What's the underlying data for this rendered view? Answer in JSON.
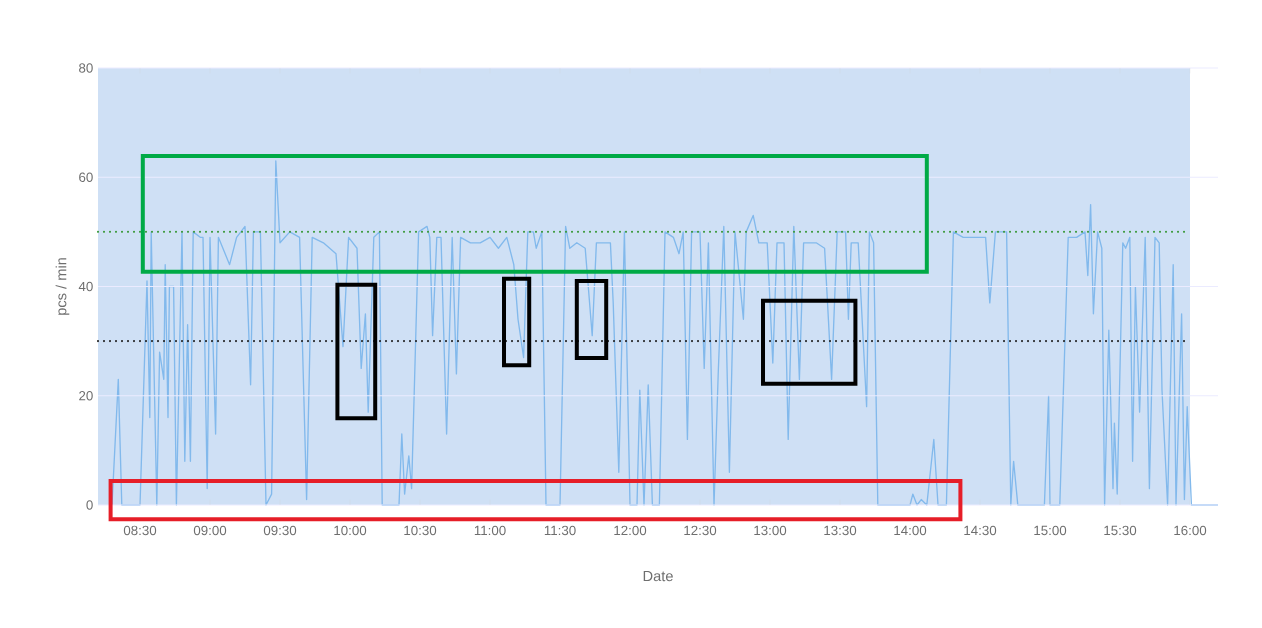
{
  "chart_data": {
    "type": "line",
    "xlabel": "Date",
    "ylabel": "pcs / min",
    "xlim": [
      8.2,
      16.2
    ],
    "ylim": [
      0,
      80
    ],
    "yticks": [
      0,
      20,
      40,
      60,
      80
    ],
    "xticks": [
      {
        "value": 8.5,
        "label": "08:30"
      },
      {
        "value": 9,
        "label": "09:00"
      },
      {
        "value": 9.5,
        "label": "09:30"
      },
      {
        "value": 10,
        "label": "10:00"
      },
      {
        "value": 10.5,
        "label": "10:30"
      },
      {
        "value": 11,
        "label": "11:00"
      },
      {
        "value": 11.5,
        "label": "11:30"
      },
      {
        "value": 12,
        "label": "12:00"
      },
      {
        "value": 12.5,
        "label": "12:30"
      },
      {
        "value": 13,
        "label": "13:00"
      },
      {
        "value": 13.5,
        "label": "13:30"
      },
      {
        "value": 14,
        "label": "14:00"
      },
      {
        "value": 14.5,
        "label": "14:30"
      },
      {
        "value": 15,
        "label": "15:00"
      },
      {
        "value": 15.5,
        "label": "15:30"
      },
      {
        "value": 16,
        "label": "16:00"
      }
    ],
    "grid": "y",
    "bands": [
      {
        "axis": "x",
        "from": 8.2,
        "to": 16.0,
        "color": "#cfe0f5"
      }
    ],
    "ref_lines": [
      {
        "axis": "y",
        "value": 50,
        "color": "#3c9a3c",
        "line_style": "dotted"
      },
      {
        "axis": "y",
        "value": 30,
        "color": "#222222",
        "line_style": "dotted"
      }
    ],
    "series": [
      {
        "color": "#82b9ec",
        "x": [
          8.3,
          8.345,
          8.37,
          8.5,
          8.55,
          8.57,
          8.58,
          8.62,
          8.64,
          8.67,
          8.68,
          8.7,
          8.71,
          8.74,
          8.76,
          8.8,
          8.82,
          8.84,
          8.86,
          8.88,
          8.93,
          8.95,
          8.98,
          9.0,
          9.04,
          9.06,
          9.14,
          9.19,
          9.25,
          9.29,
          9.31,
          9.36,
          9.4,
          9.44,
          9.47,
          9.5,
          9.57,
          9.64,
          9.69,
          9.73,
          9.81,
          9.9,
          9.95,
          9.99,
          10.05,
          10.08,
          10.11,
          10.13,
          10.17,
          10.21,
          10.23,
          10.35,
          10.37,
          10.39,
          10.42,
          10.44,
          10.49,
          10.55,
          10.57,
          10.59,
          10.62,
          10.65,
          10.69,
          10.73,
          10.76,
          10.79,
          10.86,
          10.93,
          11.0,
          11.06,
          11.12,
          11.17,
          11.2,
          11.24,
          11.27,
          11.31,
          11.33,
          11.37,
          11.4,
          11.5,
          11.54,
          11.57,
          11.62,
          11.68,
          11.73,
          11.76,
          11.86,
          11.88,
          11.92,
          11.96,
          12.0,
          12.05,
          12.07,
          12.1,
          12.13,
          12.16,
          12.21,
          12.25,
          12.31,
          12.35,
          12.38,
          12.41,
          12.44,
          12.5,
          12.53,
          12.56,
          12.6,
          12.63,
          12.67,
          12.71,
          12.75,
          12.81,
          12.83,
          12.88,
          12.92,
          12.98,
          13.02,
          13.05,
          13.1,
          13.13,
          13.17,
          13.21,
          13.24,
          13.33,
          13.39,
          13.44,
          13.48,
          13.54,
          13.56,
          13.58,
          13.63,
          13.69,
          13.71,
          13.74,
          13.77,
          14.0,
          14.02,
          14.05,
          14.08,
          14.12,
          14.17,
          14.2,
          14.26,
          14.31,
          14.38,
          14.45,
          14.54,
          14.57,
          14.61,
          14.69,
          14.72,
          14.74,
          14.77,
          14.96,
          14.99,
          15.0,
          15.07,
          15.13,
          15.19,
          15.25,
          15.27,
          15.29,
          15.31,
          15.34,
          15.37,
          15.39,
          15.42,
          15.45,
          15.46,
          15.48,
          15.52,
          15.54,
          15.57,
          15.59,
          15.61,
          15.64,
          15.68,
          15.71,
          15.75,
          15.78,
          15.8,
          15.84,
          15.88,
          15.9,
          15.94,
          15.96,
          15.98,
          16.01,
          16.2
        ],
        "values": [
          0,
          23,
          0,
          0,
          41,
          16,
          50,
          0,
          28,
          23,
          44,
          16,
          40,
          40,
          0,
          50,
          8,
          33,
          8,
          50,
          49,
          49,
          3,
          49,
          13,
          49,
          44,
          49,
          51,
          22,
          50,
          50,
          0,
          2,
          63,
          48,
          50,
          49,
          1,
          49,
          48,
          46,
          29,
          49,
          47,
          25,
          35,
          17,
          49,
          50,
          0,
          0,
          13,
          2,
          9,
          3,
          50,
          51,
          49,
          31,
          49,
          49,
          13,
          49,
          24,
          49,
          48,
          48,
          49,
          47,
          49,
          44,
          34,
          27,
          50,
          50,
          47,
          50,
          0,
          0,
          51,
          47,
          48,
          47,
          31,
          48,
          48,
          37,
          6,
          50,
          0,
          0,
          21,
          0,
          22,
          0,
          0,
          50,
          49,
          46,
          50,
          12,
          50,
          50,
          25,
          48,
          0,
          24,
          51,
          6,
          50,
          34,
          50,
          53,
          48,
          48,
          26,
          48,
          48,
          12,
          51,
          23,
          48,
          48,
          47,
          23,
          50,
          50,
          34,
          48,
          48,
          18,
          50,
          48,
          0,
          0,
          2,
          0,
          1,
          0,
          12,
          0,
          0,
          50,
          49,
          49,
          49,
          37,
          50,
          50,
          0,
          8,
          0,
          0,
          20,
          0,
          0,
          49,
          49,
          50,
          42,
          55,
          35,
          50,
          47,
          0,
          32,
          3,
          15,
          2,
          48,
          47,
          49,
          8,
          40,
          17,
          49,
          3,
          49,
          48,
          21,
          0,
          44,
          0,
          35,
          1,
          18,
          0,
          0
        ]
      }
    ]
  }
}
